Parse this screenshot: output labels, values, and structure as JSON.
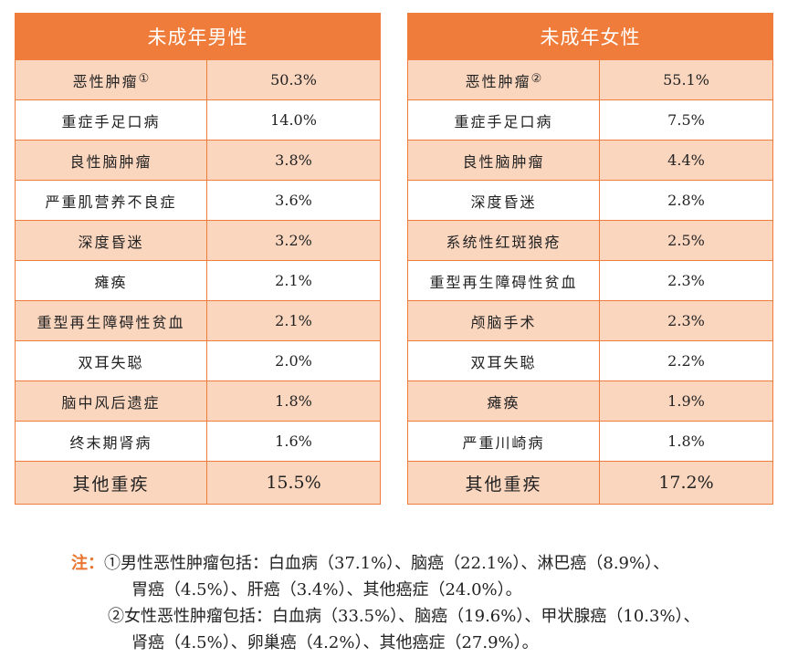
{
  "male": {
    "title": "未成年男性",
    "rows": [
      {
        "name": "恶性肿瘤",
        "mark": "①",
        "value": "50.3%"
      },
      {
        "name": "重症手足口病",
        "value": "14.0%"
      },
      {
        "name": "良性脑肿瘤",
        "value": "3.8%"
      },
      {
        "name": "严重肌营养不良症",
        "value": "3.6%"
      },
      {
        "name": "深度昏迷",
        "value": "3.2%"
      },
      {
        "name": "瘫痪",
        "value": "2.1%"
      },
      {
        "name": "重型再生障碍性贫血",
        "value": "2.1%"
      },
      {
        "name": "双耳失聪",
        "value": "2.0%"
      },
      {
        "name": "脑中风后遗症",
        "value": "1.8%"
      },
      {
        "name": "终末期肾病",
        "value": "1.6%"
      },
      {
        "name": "其他重疾",
        "value": "15.5%"
      }
    ]
  },
  "female": {
    "title": "未成年女性",
    "rows": [
      {
        "name": "恶性肿瘤",
        "mark": "②",
        "value": "55.1%"
      },
      {
        "name": "重症手足口病",
        "value": "7.5%"
      },
      {
        "name": "良性脑肿瘤",
        "value": "4.4%"
      },
      {
        "name": "深度昏迷",
        "value": "2.8%"
      },
      {
        "name": "系统性红斑狼疮",
        "value": "2.5%"
      },
      {
        "name": "重型再生障碍性贫血",
        "value": "2.3%"
      },
      {
        "name": "颅脑手术",
        "value": "2.3%"
      },
      {
        "name": "双耳失聪",
        "value": "2.2%"
      },
      {
        "name": "瘫痪",
        "value": "1.9%"
      },
      {
        "name": "严重川崎病",
        "value": "1.8%"
      },
      {
        "name": "其他重疾",
        "value": "17.2%"
      }
    ]
  },
  "notes": {
    "label": "注：",
    "note1_line1": "①男性恶性肿瘤包括：白血病（37.1%）、脑癌（22.1%）、淋巴癌（8.9%）、",
    "note1_line2": "胃癌（4.5%）、肝癌（3.4%）、其他癌症（24.0%）。",
    "note2_line1": "②女性恶性肿瘤包括：白血病（33.5%）、脑癌（19.6%）、甲状腺癌（10.3%）、",
    "note2_line2": "肾癌（4.5%）、卵巢癌（4.2%）、其他癌症（27.9%）。"
  }
}
